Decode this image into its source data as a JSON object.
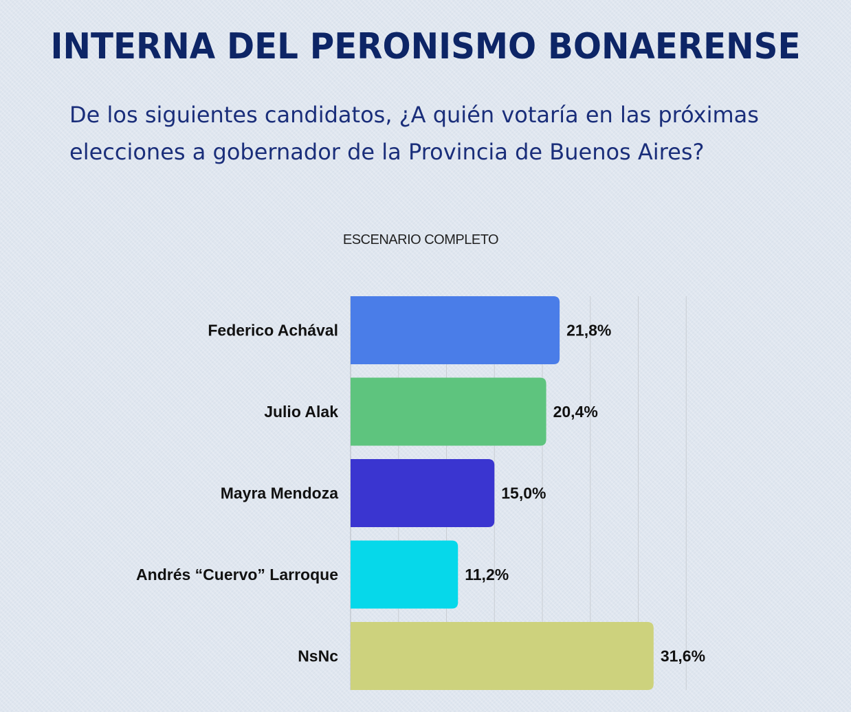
{
  "title": "INTERNA DEL PERONISMO BONAERENSE",
  "subtitle": "De los siguientes candidatos, ¿A quién votaría en las próximas elecciones a gobernador de la Provincia de Buenos Aires?",
  "chart_data": {
    "type": "bar",
    "orientation": "horizontal",
    "title": "ESCENARIO COMPLETO",
    "categories": [
      "Federico Achával",
      "Julio Alak",
      "Mayra Mendoza",
      "Andrés “Cuervo” Larroque",
      "NsNc"
    ],
    "values": [
      21.8,
      20.4,
      15.0,
      11.2,
      31.6
    ],
    "value_labels": [
      "21,8%",
      "20,4%",
      "15,0%",
      "11,2%",
      "31,6%"
    ],
    "colors": [
      "#4a7de8",
      "#5ec47e",
      "#3a35d0",
      "#06d8ea",
      "#cdd27d"
    ],
    "xlim": [
      0,
      35
    ],
    "grid": true,
    "legend": "none"
  }
}
